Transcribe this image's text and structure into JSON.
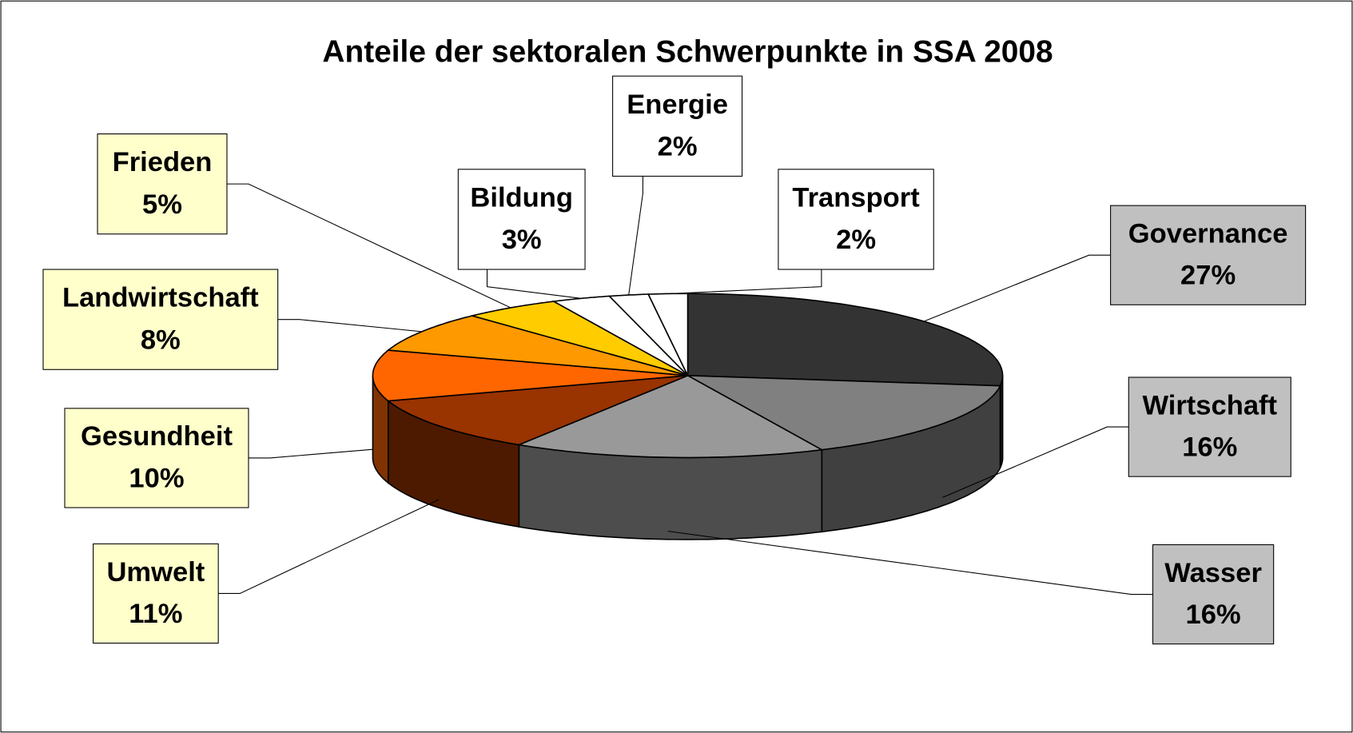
{
  "chart_data": {
    "type": "pie3d",
    "title": "Anteile der sektoralen Schwerpunkte in SSA 2008",
    "categories": [
      "Governance",
      "Wirtschaft",
      "Wasser",
      "Umwelt",
      "Gesundheit",
      "Landwirtschaft",
      "Frieden",
      "Bildung",
      "Energie",
      "Transport"
    ],
    "values": [
      27,
      16,
      16,
      11,
      10,
      8,
      5,
      3,
      2,
      2
    ],
    "value_labels": [
      "27%",
      "16%",
      "16%",
      "11%",
      "10%",
      "8%",
      "5%",
      "3%",
      "2%",
      "2%"
    ],
    "colors": [
      "#333333",
      "#808080",
      "#999999",
      "#993300",
      "#ff6600",
      "#ff9900",
      "#ffcc00",
      "#ffffff",
      "#ffffff",
      "#ffffff"
    ],
    "label_colors": [
      "#c0c0c0",
      "#c0c0c0",
      "#c0c0c0",
      "#ffffcc",
      "#ffffcc",
      "#ffffcc",
      "#ffffcc",
      "#ffffff",
      "#ffffff",
      "#ffffff"
    ]
  }
}
